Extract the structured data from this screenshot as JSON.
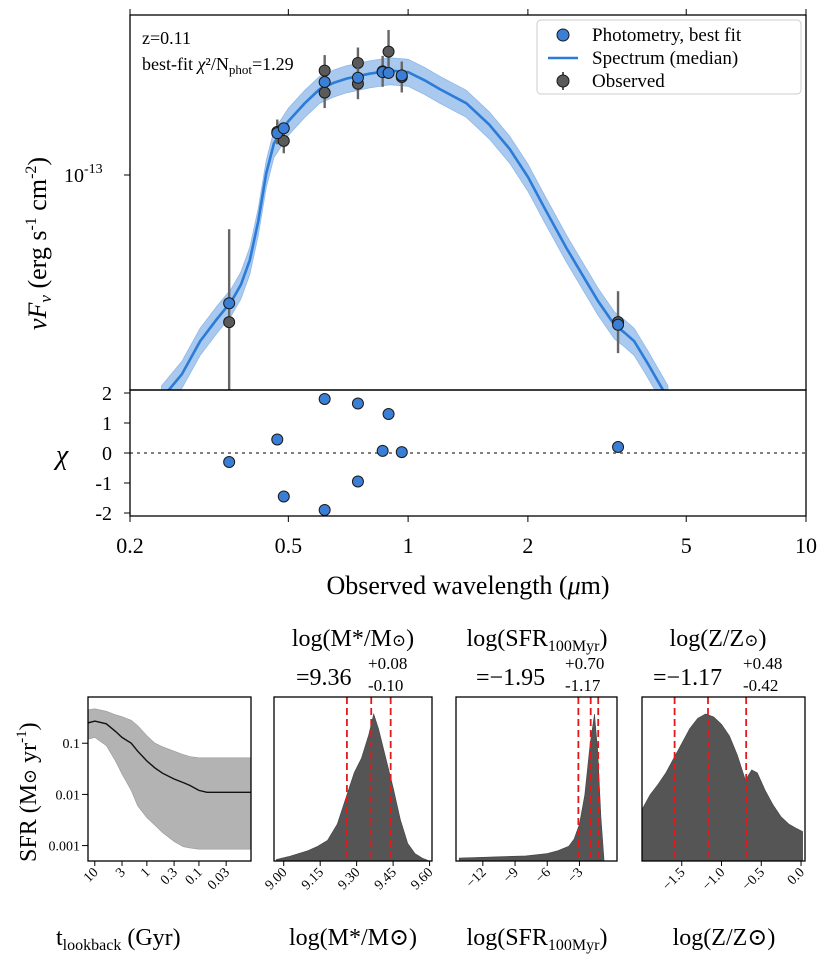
{
  "chart_data": [
    {
      "type": "scatter",
      "name": "sed-panel",
      "info_line1": "z=0.11",
      "info_line2_prefix": "best-fit ",
      "info_line2_chi": "χ",
      "info_line2_mid": "²/N",
      "info_line2_sub": "phot",
      "info_line2_suffix": "=1.29",
      "ylabel_main": "νF",
      "ylabel_sub": "ν",
      "ylabel_units": " (erg s",
      "ylabel_exp1": "-1",
      "ylabel_mid": " cm",
      "ylabel_exp2": "-2",
      "ylabel_close": ")",
      "ylim": [
        1.6e-14,
        2.6e-13
      ],
      "xlim": [
        0.2,
        10
      ],
      "ytick_base": "10",
      "ytick_exp": "-13",
      "legend": [
        {
          "label": "Photometry, best fit",
          "marker": "circle",
          "color": "#3a7fd5"
        },
        {
          "label": "Spectrum (median)",
          "marker": "line",
          "color": "#2b7bd9"
        },
        {
          "label": "Observed",
          "marker": "circle-errorbar",
          "color": "#555555"
        }
      ],
      "photometry_best_fit": {
        "x": [
          0.355,
          0.469,
          0.487,
          0.617,
          0.748,
          0.863,
          0.893,
          0.964,
          3.37
        ],
        "y": [
          3.05e-14,
          1.08e-13,
          1.12e-13,
          1.58e-13,
          1.63e-13,
          1.7e-13,
          1.69e-13,
          1.66e-13,
          2.6e-14
        ]
      },
      "observed": {
        "x": [
          0.355,
          0.469,
          0.487,
          0.617,
          0.617,
          0.748,
          0.748,
          0.863,
          0.893,
          0.964,
          3.37
        ],
        "y": [
          2.65e-14,
          1.09e-13,
          1.02e-13,
          1.72e-13,
          1.46e-13,
          1.82e-13,
          1.56e-13,
          1.71e-13,
          1.98e-13,
          1.64e-13,
          2.65e-14
        ],
        "yerr": [
          0.3,
          0.04,
          0.04,
          0.05,
          0.05,
          0.05,
          0.05,
          0.05,
          0.07,
          0.05,
          0.1
        ]
      },
      "spectrum_median": {
        "x": [
          0.24,
          0.27,
          0.3,
          0.33,
          0.36,
          0.38,
          0.4,
          0.42,
          0.44,
          0.46,
          0.5,
          0.55,
          0.6,
          0.65,
          0.7,
          0.8,
          0.9,
          1.0,
          1.1,
          1.2,
          1.4,
          1.6,
          1.8,
          2.0,
          2.2,
          2.5,
          2.8,
          3.0,
          3.3,
          3.5,
          3.7,
          4.0,
          4.5
        ],
        "y": [
          1.5e-14,
          1.8e-14,
          2.3e-14,
          2.7e-14,
          3.1e-14,
          3.5e-14,
          4.2e-14,
          5.6e-14,
          8e-14,
          1e-13,
          1.18e-13,
          1.35e-13,
          1.5e-13,
          1.57e-13,
          1.62e-13,
          1.68e-13,
          1.72e-13,
          1.7e-13,
          1.6e-13,
          1.5e-13,
          1.35e-13,
          1.15e-13,
          9.6e-14,
          7.8e-14,
          6.2e-14,
          4.6e-14,
          3.6e-14,
          3.1e-14,
          2.6e-14,
          2.45e-14,
          2.3e-14,
          1.95e-14,
          1.5e-14
        ]
      }
    },
    {
      "type": "scatter",
      "name": "residual-panel",
      "ylabel": "χ",
      "xlabel_prefix": "Observed wavelength (",
      "xlabel_mu": "μ",
      "xlabel_suffix": "m)",
      "xlim": [
        0.2,
        10
      ],
      "ylim": [
        -2,
        2
      ],
      "xticks": [
        0.2,
        0.5,
        1,
        2,
        5,
        10
      ],
      "xtick_labels": [
        "0.2",
        "0.5",
        "1",
        "2",
        "5",
        "10"
      ],
      "yticks": [
        2,
        1,
        0,
        -1,
        -2
      ],
      "ytick_labels": [
        "2",
        "1",
        "0",
        "-1",
        "-2"
      ],
      "x": [
        0.355,
        0.469,
        0.487,
        0.617,
        0.617,
        0.748,
        0.748,
        0.863,
        0.893,
        0.964,
        3.37
      ],
      "y": [
        -0.3,
        0.45,
        -1.45,
        1.8,
        -1.9,
        1.65,
        -0.95,
        0.07,
        1.3,
        0.03,
        0.2
      ]
    },
    {
      "type": "area",
      "name": "sfh-panel",
      "ylabel_prefix": "SFR (M",
      "ylabel_sun": "⊙",
      "ylabel_unit": " yr",
      "ylabel_exp": "-1",
      "ylabel_close": ")",
      "xlabel_main": "t",
      "xlabel_sub": "lookback",
      "xlabel_suffix": " (Gyr)",
      "xlim": [
        13.5,
        0.01
      ],
      "ylim": [
        0.0005,
        0.8
      ],
      "xticks": [
        10,
        3,
        1,
        0.3,
        0.1,
        0.03
      ],
      "xtick_labels": [
        "10",
        "3",
        "1",
        "0.3",
        "0.1",
        "0.03"
      ],
      "yticks": [
        0.1,
        0.01,
        0.001
      ],
      "ytick_labels": [
        "0.1",
        "0.01",
        "0.001"
      ],
      "t": [
        13.5,
        10,
        6,
        4,
        3,
        2,
        1.5,
        1,
        0.7,
        0.5,
        0.3,
        0.2,
        0.15,
        0.1,
        0.07,
        0.05,
        0.03,
        0.01
      ],
      "median": [
        0.25,
        0.27,
        0.24,
        0.17,
        0.13,
        0.1,
        0.07,
        0.045,
        0.033,
        0.026,
        0.02,
        0.017,
        0.015,
        0.012,
        0.011,
        0.011,
        0.011,
        0.011
      ],
      "upper": [
        0.45,
        0.47,
        0.42,
        0.36,
        0.33,
        0.28,
        0.22,
        0.14,
        0.1,
        0.085,
        0.07,
        0.06,
        0.055,
        0.052,
        0.052,
        0.052,
        0.052,
        0.052
      ],
      "lower": [
        0.12,
        0.13,
        0.09,
        0.045,
        0.025,
        0.012,
        0.006,
        0.0035,
        0.0025,
        0.0018,
        0.0012,
        0.00095,
        0.0009,
        0.00085,
        0.00085,
        0.00085,
        0.00085,
        0.00085
      ]
    },
    {
      "type": "area",
      "name": "posterior-mass",
      "title_prefix": "log(M",
      "title_star": "*",
      "title_mid": "/M",
      "title_sun": "⊙",
      "title_close": ")",
      "value": "=9.36",
      "err_plus": "+0.08",
      "err_minus": "-0.10",
      "xlabel": "log(M*/M⊙)",
      "xlim": [
        8.96,
        9.61
      ],
      "xticks": [
        9.0,
        9.15,
        9.3,
        9.45,
        9.6
      ],
      "xtick_labels": [
        "9.00",
        "9.15",
        "9.30",
        "9.45",
        "9.60"
      ],
      "quantiles": [
        9.26,
        9.36,
        9.44
      ],
      "x": [
        8.97,
        9.02,
        9.06,
        9.1,
        9.14,
        9.18,
        9.22,
        9.26,
        9.29,
        9.32,
        9.35,
        9.37,
        9.39,
        9.42,
        9.45,
        9.48,
        9.51,
        9.54,
        9.57,
        9.6
      ],
      "density": [
        0.01,
        0.03,
        0.05,
        0.07,
        0.1,
        0.14,
        0.25,
        0.45,
        0.6,
        0.7,
        0.86,
        1.0,
        0.9,
        0.7,
        0.5,
        0.28,
        0.12,
        0.05,
        0.02,
        0.0
      ]
    },
    {
      "type": "area",
      "name": "posterior-sfr",
      "title_prefix": "log(SFR",
      "title_sub": "100Myr",
      "title_close": ")",
      "value": "=−1.95",
      "err_plus": "+0.70",
      "err_minus": "-1.17",
      "xlabel_prefix": "log(SFR",
      "xlabel_sub": "100Myr",
      "xlabel_close": ")",
      "xlim": [
        -14.5,
        0.5
      ],
      "xticks": [
        -12,
        -9,
        -6,
        -3
      ],
      "xtick_labels": [
        "−12",
        "−9",
        "−6",
        "−3"
      ],
      "quantiles": [
        -3.1,
        -1.95,
        -1.25
      ],
      "x": [
        -14.2,
        -12,
        -10,
        -8,
        -6,
        -5,
        -4,
        -3.5,
        -3,
        -2.5,
        -2,
        -1.6,
        -1.3,
        -1.0,
        -0.7
      ],
      "density": [
        0.02,
        0.025,
        0.03,
        0.035,
        0.05,
        0.07,
        0.1,
        0.15,
        0.25,
        0.45,
        0.8,
        1.0,
        0.75,
        0.3,
        0.0
      ]
    },
    {
      "type": "area",
      "name": "posterior-metallicity",
      "title_prefix": "log(Z/Z",
      "title_sun": "⊙",
      "title_close": ")",
      "value": "=−1.17",
      "err_plus": "+0.48",
      "err_minus": "-0.42",
      "xlabel": "log(Z/Z⊙)",
      "xlim": [
        -2.0,
        0.05
      ],
      "xticks": [
        -1.5,
        -1.0,
        -0.5,
        0.0
      ],
      "xtick_labels": [
        "−1.5",
        "−1.0",
        "−0.5",
        "0.0"
      ],
      "quantiles": [
        -1.59,
        -1.17,
        -0.69
      ],
      "x": [
        -2.0,
        -1.9,
        -1.8,
        -1.7,
        -1.6,
        -1.5,
        -1.4,
        -1.3,
        -1.2,
        -1.1,
        -1.0,
        -0.9,
        -0.8,
        -0.7,
        -0.62,
        -0.55,
        -0.45,
        -0.35,
        -0.25,
        -0.15,
        -0.05,
        0.02
      ],
      "density": [
        0.35,
        0.45,
        0.52,
        0.6,
        0.7,
        0.8,
        0.9,
        0.97,
        1.0,
        0.98,
        0.93,
        0.85,
        0.72,
        0.55,
        0.62,
        0.6,
        0.48,
        0.38,
        0.3,
        0.25,
        0.22,
        0.2
      ]
    }
  ]
}
